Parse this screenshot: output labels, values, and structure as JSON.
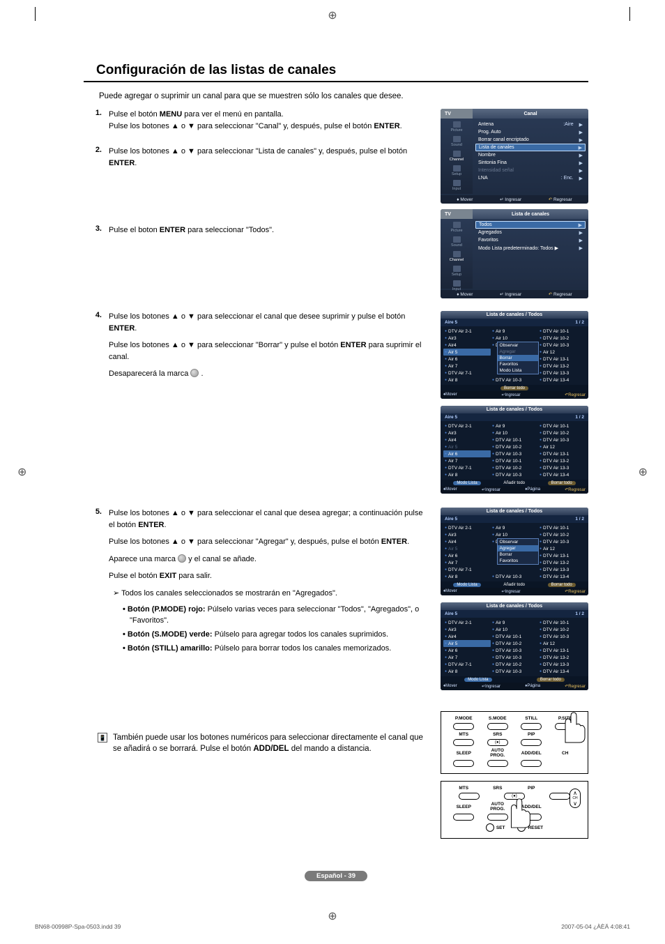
{
  "page": {
    "title": "Configuración de las listas de canales",
    "intro": "Puede agregar o suprimir un canal para que se muestren sólo los canales que desee.",
    "badge": "Español - 39",
    "print_file": "BN68-00998P-Spa-0503.indd   39",
    "print_time": "2007-05-04   ¿ÀÈÄ 4:08:41"
  },
  "steps": {
    "s1": {
      "num": "1.",
      "l1a": "Pulse el botón ",
      "l1b": "MENU",
      "l1c": " para ver el menú en pantalla.",
      "l2a": "Pulse los botones ▲ o ▼ para seleccionar \"Canal\" y, después, pulse el botón ",
      "l2b": "ENTER",
      "l2c": "."
    },
    "s2": {
      "num": "2.",
      "l1a": "Pulse los botones ▲ o ▼ para seleccionar \"Lista de canales\" y, después, pulse el botón ",
      "l1b": "ENTER",
      "l1c": "."
    },
    "s3": {
      "num": "3.",
      "l1a": "Pulse el boton ",
      "l1b": "ENTER",
      "l1c": " para seleccionar \"Todos\"."
    },
    "s4": {
      "num": "4.",
      "l1a": "Pulse los botones ▲ o ▼ para seleccionar el canal que desee suprimir y pulse el botón ",
      "l1b": "ENTER",
      "l1c": ".",
      "l2a": "Pulse los botones ▲ o ▼ para seleccionar \"Borrar\" y pulse el botón ",
      "l2b": "ENTER",
      "l2c": " para suprimir el canal.",
      "l3a": "Desaparecerá la marca ",
      "l3c": " ."
    },
    "s5": {
      "num": "5.",
      "l1a": "Pulse los botones ▲ o ▼ para seleccionar el canal que desea agregar; a continuación pulse el botón ",
      "l1b": "ENTER",
      "l1c": ".",
      "l2a": "Pulse los botones ▲ o ▼ para seleccionar \"Agregar\" y, después, pulse el botón ",
      "l2b": "ENTER",
      "l2c": ".",
      "l3a": "Aparece una marca ",
      "l3c": " y  el canal se añade.",
      "l4a": "Pulse el botón ",
      "l4b": "EXIT",
      "l4c": " para salir.",
      "note": "Todos los canales seleccionados se mostrarán en \"Agregados\"."
    },
    "bullets": {
      "b1a": "• Botón (P.MODE) rojo:",
      "b1b": " Púlselo varias veces para seleccionar \"Todos\", \"Agregados\", o \"Favoritos\".",
      "b2a": "• Botón (S.MODE) verde:",
      "b2b": " Púlselo para agregar todos los canales suprimidos.",
      "b3a": "• Botón (STILL) amarillo:",
      "b3b": " Púlselo para borrar todos los canales memorizados."
    },
    "footnote": {
      "text_a": "También puede usar los botones numéricos para seleccionar directamente el canal que se añadirá o se borrará. Pulse el botón ",
      "text_b": "ADD/DEL",
      "text_c": " del mando a distancia."
    }
  },
  "osd1": {
    "tv": "TV",
    "title": "Canal",
    "side": [
      "Picture",
      "Sound",
      "Channel",
      "Setup",
      "Input"
    ],
    "rows": [
      {
        "l": "Antena",
        "v": ":Aire",
        "sel": false
      },
      {
        "l": "Prog. Auto",
        "v": "",
        "sel": false
      },
      {
        "l": "Borrar canal encriptado",
        "v": "",
        "sel": false
      },
      {
        "l": "Lista de canales",
        "v": "",
        "sel": true
      },
      {
        "l": "Nombre",
        "v": "",
        "sel": false
      },
      {
        "l": "Sintonia Fina",
        "v": "",
        "sel": false
      },
      {
        "l": "Intensidad señal",
        "v": "",
        "dim": true
      },
      {
        "l": "LNA",
        "v": ": Enc.",
        "sel": false
      }
    ],
    "bar": {
      "a": "Mover",
      "b": "Ingresar",
      "c": "Regresar"
    }
  },
  "osd2": {
    "tv": "TV",
    "title": "Lista de canales",
    "side": [
      "Picture",
      "Sound",
      "Channel",
      "Setup",
      "Input"
    ],
    "rows": [
      {
        "l": "Todos",
        "sel": true
      },
      {
        "l": "Agregados"
      },
      {
        "l": "Favoritos"
      },
      {
        "l": "Modo Lista predeterminado: Todos ▶"
      }
    ],
    "bar": {
      "a": "Mover",
      "b": "Ingresar",
      "c": "Regresar"
    }
  },
  "channels": {
    "c1": [
      "DTV Air 2-1",
      "Air3",
      "Air4",
      "Air 5",
      "Air 6",
      "Air 7",
      "DTV Air 7-1",
      "Air 8"
    ],
    "c2": [
      "Air 9",
      "Air 10",
      "DTV Air 10-1",
      "",
      "",
      "",
      "",
      "DTV Air 10-3"
    ],
    "c3": [
      "DTV Air 10-1",
      "DTV Air 10-2",
      "DTV Air 10-3",
      "Air 12",
      "DTV Air 13-1",
      "DTV Air 13-2",
      "DTV Air 13-3",
      "DTV Air 13-4"
    ],
    "c2_full": [
      "Air 9",
      "Air 10",
      "DTV Air 10-1",
      "DTV Air 10-2",
      "DTV Air 10-3",
      "DTV Air 10-1",
      "DTV Air 10-2",
      "DTV Air 10-3"
    ],
    "c2_p6": [
      "Air 9",
      "Air 10",
      "DTV Air 10-1",
      "DTV Air 10-2",
      "DTV Air 10-3",
      "DTV Air 10-3",
      "DTV Air 10-2",
      "DTV Air 10-3"
    ]
  },
  "panel3": {
    "title": "Lista de canales / Todos",
    "sub_l": "Aire 5",
    "sub_r": "1 / 2",
    "submenu": [
      "Observar",
      "Agregar",
      "Borrar",
      "Favoritos",
      "Modo Lista"
    ],
    "submenu_sel": 2,
    "submenu_dim": 1,
    "act_r": "Borrar todo",
    "foot": [
      "Mover",
      "Ingresar",
      "Regresar"
    ]
  },
  "panel4": {
    "title": "Lista de canales / Todos",
    "sub_l": "Aire 5",
    "sub_r": "1 / 2",
    "act_l": "Modo Lista",
    "act_m": "Añadir todo",
    "act_r": "Borrar todo",
    "foot": [
      "Mover",
      "Ingresar",
      "Página",
      "Regresar"
    ]
  },
  "panel5": {
    "title": "Lista de canales / Todos",
    "sub_l": "Aire 5",
    "sub_r": "1 / 2",
    "submenu": [
      "Observar",
      "Agregar",
      "Borrar",
      "Favoritos"
    ],
    "submenu_sel": 1,
    "act_l": "Modo Lista",
    "act_m": "Añadir todo",
    "act_r": "Borrar todo",
    "foot": [
      "Mover",
      "Ingresar",
      "Regresar"
    ]
  },
  "panel6": {
    "title": "Lista de canales / Todos",
    "sub_l": "Aire 5",
    "sub_r": "1 / 2",
    "act_l": "Modo Lista",
    "act_r": "Borrar todo",
    "foot": [
      "Mover",
      "Ingresar",
      "Página",
      "Regresar"
    ]
  },
  "remote1": {
    "top": [
      "P.MODE",
      "S.MODE",
      "STILL",
      "P.SIZE"
    ],
    "mid": [
      "MTS",
      "SRS",
      "PIP"
    ],
    "bot": [
      "SLEEP",
      "AUTO PROG.",
      "ADD/DEL",
      "CH"
    ]
  },
  "remote2": {
    "top": [
      "MTS",
      "SRS",
      "PIP"
    ],
    "mid": [
      "SLEEP",
      "AUTO PROG.",
      "ADD/DEL"
    ],
    "bot": [
      "SET",
      "RESET"
    ]
  },
  "colors": {
    "osd_bg": "#1d2a40",
    "sel_bg": "#3a6aa5",
    "gold": "#e8c060"
  }
}
